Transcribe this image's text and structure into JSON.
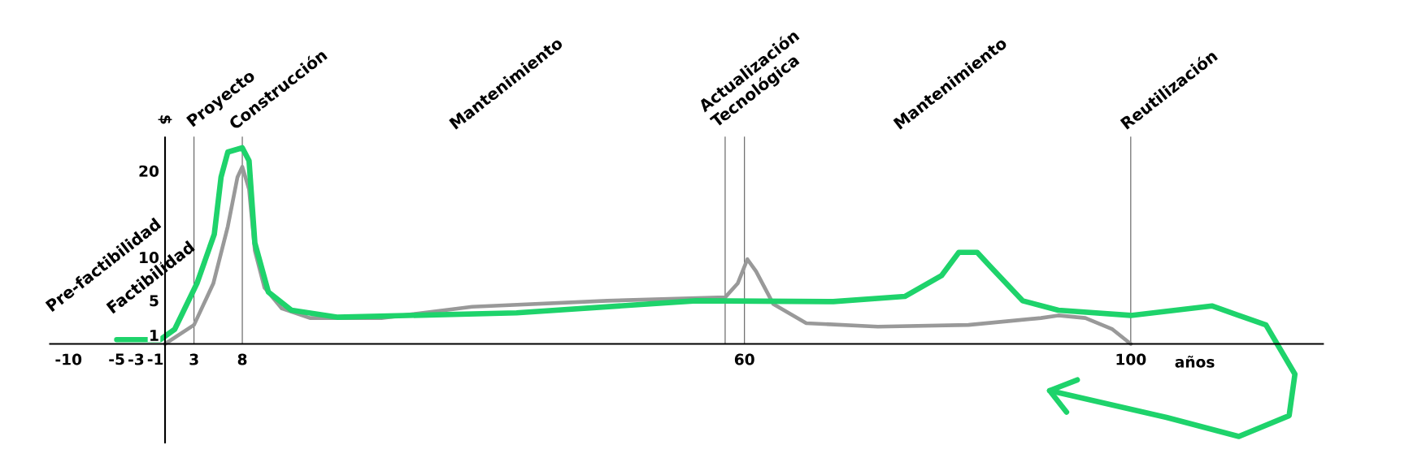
{
  "chart_data": {
    "type": "line",
    "xlabel": "años",
    "ylabel": "$",
    "xlim": [
      -12,
      120
    ],
    "ylim": [
      -11.5,
      24
    ],
    "xticks": [
      -10,
      -5,
      -3,
      -1,
      3,
      8,
      60,
      100
    ],
    "yticks": [
      1,
      5,
      10,
      20
    ],
    "grid": false,
    "marker": "none",
    "line_style": "solid",
    "series": [
      {
        "color": "#999999",
        "x": [
          0,
          3,
          5,
          6.5,
          7.5,
          8,
          8.7,
          9.3,
          10.3,
          12.1,
          15,
          22.4,
          31.8,
          45.8,
          58,
          59.3,
          60.3,
          61.2,
          63,
          66.4,
          73.8,
          83.2,
          90.7,
          92.5,
          95.3,
          98.1,
          100
        ],
        "values": [
          0,
          2.2,
          7,
          13.6,
          19.3,
          20.5,
          17.9,
          10.8,
          6.5,
          4.1,
          3,
          3,
          4.3,
          5,
          5.4,
          7,
          9.8,
          8.4,
          4.6,
          2.4,
          2,
          2.2,
          3,
          3.3,
          3,
          1.7,
          0
        ]
      },
      {
        "color": "#1ed36b",
        "x": [
          -5,
          -0.5,
          1,
          3.3,
          5.1,
          5.8,
          6.5,
          8,
          8.7,
          9.3,
          10.7,
          13.1,
          17.8,
          36.4,
          55,
          69.2,
          76.6,
          80.4,
          82.2,
          84.1,
          85.5,
          88.8,
          92.5,
          100,
          108.4,
          114,
          117,
          116.4,
          111.2,
          103.7,
          91.6
        ],
        "values": [
          0.5,
          0.5,
          1.7,
          7,
          12.7,
          19.3,
          22.2,
          22.7,
          21.2,
          11.7,
          6,
          3.9,
          3.1,
          3.6,
          5,
          4.9,
          5.5,
          7.9,
          10.6,
          10.6,
          8.9,
          5,
          3.9,
          3.3,
          4.4,
          2.2,
          -3.5,
          -8.3,
          -10.7,
          -8.5,
          -5.4
        ]
      }
    ],
    "ref_lines": [
      {
        "axis": "x",
        "value": 3,
        "color": "#555555"
      },
      {
        "axis": "x",
        "value": 8,
        "color": "#555555"
      },
      {
        "axis": "x",
        "value": 58,
        "color": "#555555"
      },
      {
        "axis": "x",
        "value": 60,
        "color": "#555555"
      },
      {
        "axis": "x",
        "value": 100,
        "color": "#555555"
      }
    ],
    "annotations": [
      "Pre-factibilidad",
      "Factibilidad",
      "Proyecto",
      "Construcción",
      "Mantenimiento",
      "Actualización Tecnológica",
      "Mantenimiento",
      "Reutilización"
    ]
  }
}
